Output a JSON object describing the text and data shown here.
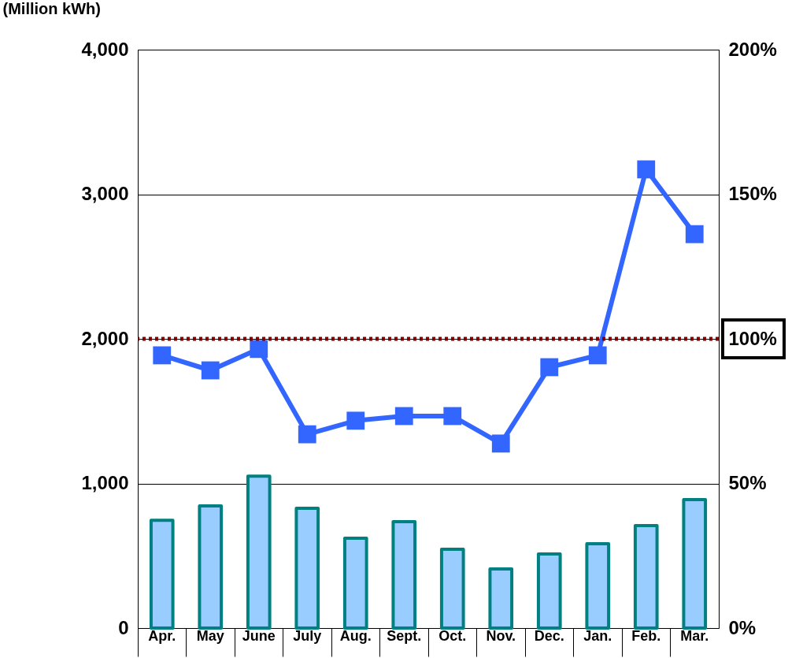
{
  "chart_data": {
    "type": "bar",
    "ylabel": "(Million kWh)",
    "categories": [
      "Apr.",
      "May",
      "June",
      "July",
      "Aug.",
      "Sept.",
      "Oct.",
      "Nov.",
      "Dec.",
      "Jan.",
      "Feb.",
      "Mar."
    ],
    "series": [
      {
        "color": "#99ccff",
        "values": [
          745,
          845,
          1050,
          828,
          621,
          736,
          545,
          409,
          512,
          583,
          708,
          888
        ]
      },
      {
        "type": "line",
        "axis": "y2",
        "color": "#3366ff",
        "marker": "square",
        "values": [
          94.3,
          89.1,
          96.5,
          67.0,
          71.7,
          73.3,
          73.3,
          63.8,
          90.2,
          94.3,
          158.6,
          136.2
        ]
      }
    ],
    "ylim": [
      0,
      4000
    ],
    "yticks": [
      0,
      {
        "value": 1000,
        "label": "1,000"
      },
      {
        "value": 2000,
        "label": "2,000"
      },
      {
        "value": 3000,
        "label": "3,000"
      },
      {
        "value": 4000,
        "label": "4,000"
      }
    ],
    "y2lim": [
      0,
      200
    ],
    "y2ticks": [
      {
        "value": 0,
        "label": "0%"
      },
      {
        "value": 50,
        "label": "50%"
      },
      {
        "value": 100,
        "label": "100%"
      },
      {
        "value": 150,
        "label": "150%"
      },
      {
        "value": 200,
        "label": "200%"
      }
    ],
    "ref_lines": [
      {
        "axis": "y2",
        "value": 100,
        "color": "#800000",
        "line_style": "dotted"
      }
    ],
    "grid": "y"
  }
}
